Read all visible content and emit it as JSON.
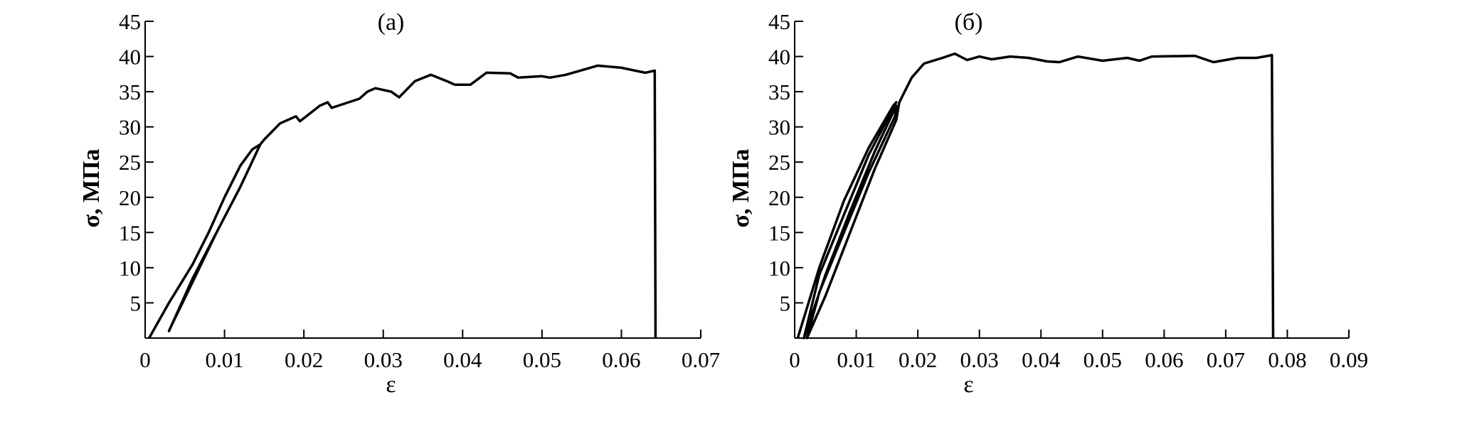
{
  "chart_data": [
    {
      "type": "line",
      "title": "(a)",
      "xlabel": "ε",
      "ylabel": "σ, МПа",
      "xlim": [
        0,
        0.07
      ],
      "ylim": [
        0,
        45
      ],
      "xticks": [
        "0",
        "0.01",
        "0.02",
        "0.03",
        "0.04",
        "0.05",
        "0.06",
        "0.07"
      ],
      "yticks": [
        "5",
        "10",
        "15",
        "20",
        "25",
        "30",
        "35",
        "40",
        "45"
      ],
      "grid": false,
      "series": [
        {
          "x": [
            0.0005,
            0.003,
            0.006,
            0.008,
            0.01,
            0.012,
            0.0135,
            0.0145,
            0.0143,
            0.012,
            0.009,
            0.006,
            0.003,
            0.0032,
            0.006,
            0.009,
            0.012,
            0.0145,
            0.015,
            0.017,
            0.019,
            0.0195,
            0.022,
            0.023,
            0.0235,
            0.027,
            0.028,
            0.029,
            0.031,
            0.032,
            0.034,
            0.036,
            0.038,
            0.039,
            0.041,
            0.043,
            0.046,
            0.047,
            0.05,
            0.051,
            0.053,
            0.057,
            0.06,
            0.063,
            0.0642,
            0.0643
          ],
          "y": [
            0,
            5,
            10.5,
            15,
            20,
            24.5,
            26.8,
            27.5,
            27,
            21.5,
            15,
            8.5,
            1,
            1.5,
            8,
            15,
            21.5,
            27.5,
            28.2,
            30.5,
            31.5,
            30.8,
            33,
            33.5,
            32.7,
            34,
            35,
            35.5,
            35,
            34.2,
            36.5,
            37.4,
            36.5,
            36,
            36,
            37.7,
            37.6,
            37,
            37.2,
            37,
            37.4,
            38.7,
            38.4,
            37.7,
            38,
            0
          ]
        }
      ]
    },
    {
      "type": "line",
      "title": "(б)",
      "xlabel": "ε",
      "ylabel": "σ, МПа",
      "xlim": [
        0,
        0.09
      ],
      "ylim": [
        0,
        45
      ],
      "xticks": [
        "0",
        "0.01",
        "0.02",
        "0.03",
        "0.04",
        "0.05",
        "0.06",
        "0.07",
        "0.08",
        "0.09"
      ],
      "yticks": [
        "5",
        "10",
        "15",
        "20",
        "25",
        "30",
        "35",
        "40",
        "45"
      ],
      "grid": false,
      "series": [
        {
          "x": [
            0.0005,
            0.004,
            0.008,
            0.012,
            0.016,
            0.0165,
            0.012,
            0.008,
            0.004,
            0.0015,
            0.005,
            0.009,
            0.013,
            0.0165,
            0.0163,
            0.012,
            0.008,
            0.004,
            0.002,
            0.005,
            0.009,
            0.013,
            0.0165,
            0.017,
            0.019,
            0.021,
            0.024,
            0.026,
            0.028,
            0.03,
            0.032,
            0.035,
            0.038,
            0.041,
            0.043,
            0.046,
            0.05,
            0.054,
            0.056,
            0.058,
            0.065,
            0.068,
            0.072,
            0.075,
            0.0775,
            0.0777
          ],
          "y": [
            0,
            10,
            19.5,
            27,
            33,
            33.5,
            26,
            17.5,
            9,
            0,
            9,
            18,
            26.5,
            33,
            31.5,
            23.5,
            15,
            6.5,
            0,
            6,
            15,
            24,
            31,
            33.5,
            37,
            39,
            39.8,
            40.4,
            39.5,
            40,
            39.6,
            40,
            39.8,
            39.3,
            39.2,
            40,
            39.4,
            39.8,
            39.4,
            40,
            40.1,
            39.2,
            39.8,
            39.8,
            40.2,
            0
          ]
        }
      ]
    }
  ]
}
